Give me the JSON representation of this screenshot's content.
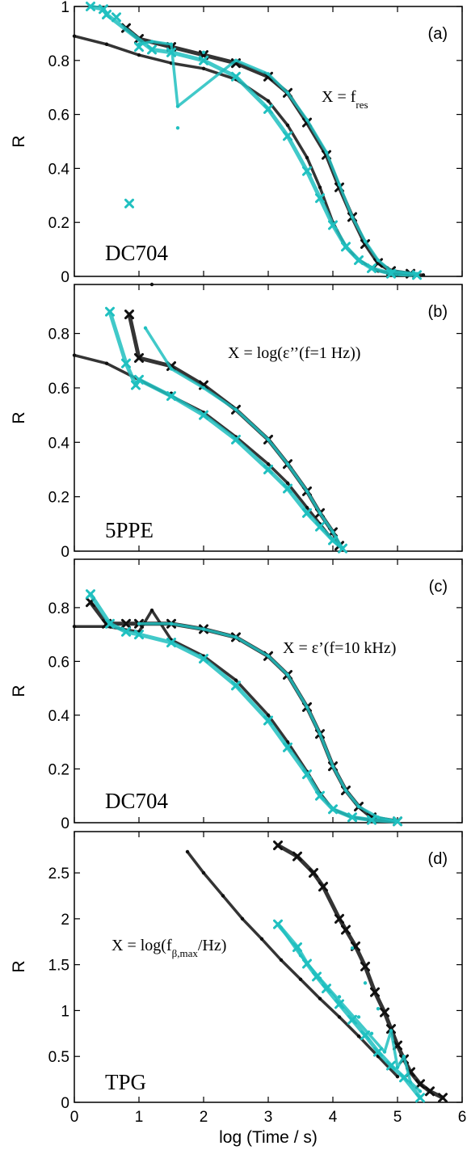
{
  "colors": {
    "black": "#111111",
    "cyan": "#20c0c0"
  },
  "x_axis": {
    "label": "log (Time / s)",
    "ticks": [
      "0",
      "1",
      "2",
      "3",
      "4",
      "5",
      "6"
    ]
  },
  "chart_data": [
    {
      "type": "scatter",
      "panel_label": "(a)",
      "sample": "DC704",
      "formula": {
        "main": "X = f",
        "sub": "res",
        "tail": ""
      },
      "ylabel": "R",
      "xlim": [
        0,
        6
      ],
      "ylim": [
        0,
        1
      ],
      "y_ticks": [
        "0",
        "0.2",
        "0.4",
        "0.6",
        "0.8",
        "1"
      ],
      "series": [
        {
          "color": "black",
          "marker": "dot",
          "points": [
            [
              0,
              0.89
            ],
            [
              0.5,
              0.86
            ],
            [
              1,
              0.82
            ],
            [
              1.5,
              0.79
            ],
            [
              2,
              0.77
            ],
            [
              2.5,
              0.73
            ],
            [
              3,
              0.65
            ],
            [
              3.3,
              0.56
            ],
            [
              3.6,
              0.44
            ],
            [
              3.8,
              0.33
            ],
            [
              4,
              0.2
            ],
            [
              4.2,
              0.11
            ],
            [
              4.4,
              0.06
            ],
            [
              4.7,
              0.02
            ],
            [
              5,
              0.01
            ],
            [
              5.4,
              0.005
            ]
          ]
        },
        {
          "color": "black",
          "marker": "cross",
          "points": [
            [
              0.8,
              0.92
            ],
            [
              1,
              0.88
            ],
            [
              1.5,
              0.85
            ],
            [
              2,
              0.82
            ],
            [
              2.5,
              0.79
            ],
            [
              3,
              0.74
            ],
            [
              3.3,
              0.68
            ],
            [
              3.6,
              0.57
            ],
            [
              3.9,
              0.45
            ],
            [
              4.1,
              0.33
            ],
            [
              4.3,
              0.22
            ],
            [
              4.5,
              0.12
            ],
            [
              4.7,
              0.05
            ],
            [
              4.9,
              0.02
            ],
            [
              5.2,
              0.01
            ]
          ]
        },
        {
          "color": "cyan",
          "marker": "dot",
          "points": [
            [
              1,
              0.86
            ],
            [
              1.2,
              0.87
            ],
            [
              1.5,
              0.86
            ],
            [
              2,
              0.83
            ],
            [
              2.5,
              0.8
            ],
            [
              3,
              0.75
            ],
            [
              3.3,
              0.68
            ],
            [
              3.6,
              0.58
            ],
            [
              3.9,
              0.46
            ],
            [
              4.1,
              0.34
            ],
            [
              4.3,
              0.22
            ],
            [
              4.5,
              0.13
            ],
            [
              4.7,
              0.06
            ],
            [
              4.9,
              0.02
            ],
            [
              5.3,
              0.01
            ],
            [
              1.6,
              0.63
            ],
            [
              1.6,
              0.55
            ]
          ]
        },
        {
          "color": "cyan",
          "marker": "cross",
          "points": [
            [
              0.25,
              1
            ],
            [
              0.45,
              0.99
            ],
            [
              0.5,
              0.97
            ],
            [
              0.65,
              0.96
            ],
            [
              0.85,
              0.27
            ],
            [
              1,
              0.85
            ],
            [
              1.2,
              0.84
            ],
            [
              1.5,
              0.83
            ],
            [
              2,
              0.8
            ],
            [
              2.5,
              0.74
            ],
            [
              3,
              0.62
            ],
            [
              3.3,
              0.52
            ],
            [
              3.6,
              0.39
            ],
            [
              3.8,
              0.29
            ],
            [
              4,
              0.19
            ],
            [
              4.2,
              0.11
            ],
            [
              4.4,
              0.06
            ],
            [
              4.6,
              0.03
            ],
            [
              4.9,
              0.01
            ],
            [
              5.3,
              0.005
            ]
          ]
        }
      ]
    },
    {
      "type": "scatter",
      "panel_label": "(b)",
      "sample": "5PPE",
      "formula": {
        "main": "X = log(ε’’(f=1 Hz))",
        "sub": "",
        "tail": ""
      },
      "ylabel": "R",
      "xlim": [
        0,
        6
      ],
      "ylim": [
        0,
        0.98
      ],
      "y_ticks": [
        "0",
        "0.2",
        "0.4",
        "0.6",
        "0.8"
      ],
      "series": [
        {
          "color": "black",
          "marker": "dot",
          "points": [
            [
              0,
              0.72
            ],
            [
              0.5,
              0.69
            ],
            [
              1,
              0.63
            ],
            [
              1.5,
              0.58
            ],
            [
              2,
              0.51
            ],
            [
              2.5,
              0.42
            ],
            [
              3,
              0.32
            ],
            [
              3.3,
              0.25
            ],
            [
              3.6,
              0.16
            ],
            [
              3.8,
              0.1
            ],
            [
              4,
              0.04
            ],
            [
              4.15,
              0.01
            ],
            [
              1.2,
              0.98
            ]
          ]
        },
        {
          "color": "black",
          "marker": "cross",
          "points": [
            [
              0.85,
              0.87
            ],
            [
              1,
              0.71
            ],
            [
              1.5,
              0.68
            ],
            [
              2,
              0.61
            ],
            [
              2.5,
              0.52
            ],
            [
              3,
              0.41
            ],
            [
              3.3,
              0.32
            ],
            [
              3.6,
              0.22
            ],
            [
              3.8,
              0.14
            ],
            [
              4,
              0.07
            ],
            [
              4.1,
              0.02
            ]
          ]
        },
        {
          "color": "cyan",
          "marker": "dot",
          "points": [
            [
              1.5,
              0.67
            ],
            [
              2,
              0.6
            ],
            [
              2.5,
              0.52
            ],
            [
              3,
              0.41
            ],
            [
              3.3,
              0.32
            ],
            [
              3.6,
              0.22
            ],
            [
              3.8,
              0.14
            ],
            [
              4,
              0.07
            ],
            [
              4.15,
              0.01
            ],
            [
              1.1,
              0.82
            ]
          ]
        },
        {
          "color": "cyan",
          "marker": "cross",
          "points": [
            [
              0.55,
              0.88
            ],
            [
              0.8,
              0.69
            ],
            [
              0.95,
              0.61
            ],
            [
              1,
              0.63
            ],
            [
              1.5,
              0.57
            ],
            [
              2,
              0.5
            ],
            [
              2.5,
              0.41
            ],
            [
              3,
              0.3
            ],
            [
              3.3,
              0.23
            ],
            [
              3.6,
              0.14
            ],
            [
              3.8,
              0.09
            ],
            [
              4,
              0.04
            ],
            [
              4.15,
              0.01
            ]
          ]
        }
      ]
    },
    {
      "type": "scatter",
      "panel_label": "(c)",
      "sample": "DC704",
      "formula": {
        "main": "X = ε’(f=10 kHz)",
        "sub": "",
        "tail": ""
      },
      "ylabel": "R",
      "xlim": [
        0,
        6
      ],
      "ylim": [
        0,
        0.98
      ],
      "y_ticks": [
        "0",
        "0.2",
        "0.4",
        "0.6",
        "0.8"
      ],
      "series": [
        {
          "color": "black",
          "marker": "dot",
          "points": [
            [
              0,
              0.73
            ],
            [
              0.5,
              0.73
            ],
            [
              1,
              0.71
            ],
            [
              1.5,
              0.68
            ],
            [
              2,
              0.62
            ],
            [
              2.5,
              0.53
            ],
            [
              3,
              0.4
            ],
            [
              3.3,
              0.3
            ],
            [
              3.6,
              0.19
            ],
            [
              3.8,
              0.11
            ],
            [
              4,
              0.05
            ],
            [
              4.3,
              0.02
            ],
            [
              4.6,
              0.01
            ],
            [
              5,
              0.005
            ],
            [
              1.2,
              0.79
            ]
          ]
        },
        {
          "color": "black",
          "marker": "cross",
          "points": [
            [
              0.25,
              0.82
            ],
            [
              0.5,
              0.74
            ],
            [
              0.8,
              0.74
            ],
            [
              1,
              0.74
            ],
            [
              1.5,
              0.74
            ],
            [
              2,
              0.72
            ],
            [
              2.5,
              0.69
            ],
            [
              3,
              0.62
            ],
            [
              3.3,
              0.55
            ],
            [
              3.6,
              0.43
            ],
            [
              3.8,
              0.33
            ],
            [
              4,
              0.21
            ],
            [
              4.2,
              0.12
            ],
            [
              4.4,
              0.06
            ],
            [
              4.6,
              0.02
            ],
            [
              5,
              0.005
            ]
          ]
        },
        {
          "color": "cyan",
          "marker": "dot",
          "points": [
            [
              1,
              0.74
            ],
            [
              1.5,
              0.74
            ],
            [
              2,
              0.72
            ],
            [
              2.5,
              0.69
            ],
            [
              3,
              0.62
            ],
            [
              3.3,
              0.55
            ],
            [
              3.6,
              0.43
            ],
            [
              3.8,
              0.33
            ],
            [
              4,
              0.21
            ],
            [
              4.2,
              0.12
            ],
            [
              4.4,
              0.06
            ],
            [
              4.7,
              0.02
            ],
            [
              5,
              0.005
            ]
          ]
        },
        {
          "color": "cyan",
          "marker": "cross",
          "points": [
            [
              0.25,
              0.85
            ],
            [
              0.55,
              0.74
            ],
            [
              0.8,
              0.71
            ],
            [
              1,
              0.7
            ],
            [
              1.5,
              0.67
            ],
            [
              2,
              0.61
            ],
            [
              2.5,
              0.51
            ],
            [
              3,
              0.38
            ],
            [
              3.3,
              0.28
            ],
            [
              3.6,
              0.18
            ],
            [
              3.8,
              0.1
            ],
            [
              4,
              0.05
            ],
            [
              4.3,
              0.02
            ],
            [
              4.6,
              0.01
            ],
            [
              5,
              0.005
            ]
          ]
        }
      ]
    },
    {
      "type": "scatter",
      "panel_label": "(d)",
      "sample": "TPG",
      "formula": {
        "main": "X = log(f",
        "sub": "β,max",
        "tail": "/Hz)"
      },
      "ylabel": "R",
      "xlim": [
        0,
        6
      ],
      "ylim": [
        0,
        2.95
      ],
      "y_ticks": [
        "0",
        "0.5",
        "1",
        "1.5",
        "2",
        "2.5"
      ],
      "series": [
        {
          "color": "black",
          "marker": "dot",
          "points": [
            [
              1.75,
              2.73
            ],
            [
              2,
              2.5
            ],
            [
              2.3,
              2.25
            ],
            [
              2.6,
              2
            ],
            [
              2.9,
              1.78
            ],
            [
              3.2,
              1.55
            ],
            [
              3.5,
              1.34
            ],
            [
              3.8,
              1.13
            ],
            [
              4.1,
              0.93
            ],
            [
              4.4,
              0.72
            ],
            [
              4.7,
              0.5
            ],
            [
              5,
              0.28
            ]
          ]
        },
        {
          "color": "black",
          "marker": "cross",
          "points": [
            [
              3.15,
              2.8
            ],
            [
              3.45,
              2.68
            ],
            [
              3.7,
              2.5
            ],
            [
              3.85,
              2.35
            ],
            [
              4.1,
              2
            ],
            [
              4.2,
              1.88
            ],
            [
              4.35,
              1.7
            ],
            [
              4.5,
              1.48
            ],
            [
              4.65,
              1.2
            ],
            [
              4.8,
              0.98
            ],
            [
              4.9,
              0.8
            ],
            [
              5,
              0.62
            ],
            [
              5.1,
              0.47
            ],
            [
              5.2,
              0.33
            ],
            [
              5.35,
              0.2
            ],
            [
              5.5,
              0.12
            ],
            [
              5.7,
              0.05
            ]
          ]
        },
        {
          "color": "cyan",
          "marker": "dot",
          "points": [
            [
              3.2,
              1.9
            ],
            [
              3.5,
              1.6
            ],
            [
              3.8,
              1.35
            ],
            [
              4.1,
              1.15
            ],
            [
              4.4,
              0.93
            ],
            [
              4.6,
              0.75
            ],
            [
              4.8,
              0.55
            ],
            [
              5,
              0.38
            ],
            [
              5.2,
              0.22
            ],
            [
              5.35,
              0.12
            ],
            [
              4.3,
              1.68
            ],
            [
              4.5,
              1.3
            ],
            [
              4.7,
              1.02
            ],
            [
              4.9,
              0.78
            ],
            [
              5.1,
              0.5
            ]
          ]
        },
        {
          "color": "cyan",
          "marker": "cross",
          "points": [
            [
              3.15,
              1.94
            ],
            [
              3.45,
              1.69
            ],
            [
              3.6,
              1.51
            ],
            [
              3.75,
              1.37
            ],
            [
              3.9,
              1.24
            ],
            [
              4.1,
              1.07
            ],
            [
              4.3,
              0.9
            ],
            [
              4.5,
              0.73
            ],
            [
              4.7,
              0.55
            ],
            [
              4.9,
              0.4
            ],
            [
              5.1,
              0.27
            ],
            [
              5.35,
              0.05
            ]
          ]
        }
      ]
    }
  ]
}
